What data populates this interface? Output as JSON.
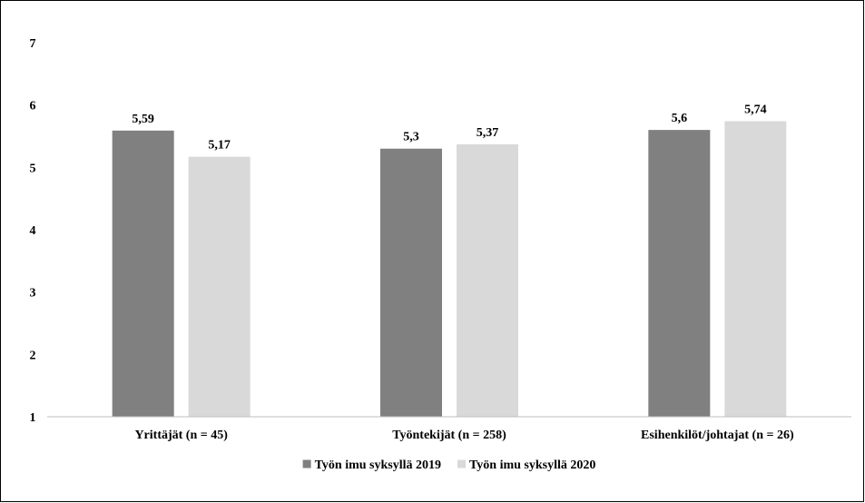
{
  "chart_data": {
    "type": "bar",
    "title": "",
    "xlabel": "",
    "ylabel": "",
    "categories": [
      "Yrittäjät (n = 45)",
      "Työntekijät (n = 258)",
      "Esihenkilöt/johtajat (n = 26)"
    ],
    "series": [
      {
        "name": "Työn imu syksyllä 2019",
        "color": "#808080",
        "values": [
          5.59,
          5.3,
          5.6
        ],
        "labels": [
          "5,59",
          "5,3",
          "5,6"
        ]
      },
      {
        "name": "Työn imu syksyllä 2020",
        "color": "#d9d9d9",
        "values": [
          5.17,
          5.37,
          5.74
        ],
        "labels": [
          "5,17",
          "5,37",
          "5,74"
        ]
      }
    ],
    "ylim": [
      1,
      7
    ],
    "yticks": [
      1,
      2,
      3,
      4,
      5,
      6,
      7
    ],
    "grid": false,
    "legend_position": "bottom"
  }
}
